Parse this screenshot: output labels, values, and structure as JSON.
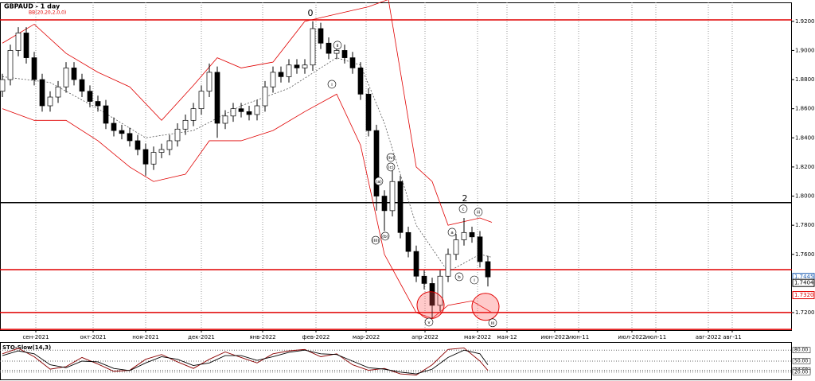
{
  "chart_data": [
    {
      "type": "candlestick",
      "title": "GBPAUD - 1 day",
      "subtitle": "BB(20,20,2,0,0)",
      "up_color": "#ffffff",
      "down_color": "#000000",
      "grid": true,
      "open": [
        1.872,
        1.88,
        1.9,
        1.912,
        1.895,
        1.88,
        1.862,
        1.868,
        1.875,
        1.888,
        1.88,
        1.872,
        1.865,
        1.862,
        1.85,
        1.845,
        1.843,
        1.838,
        1.832,
        1.822,
        1.83,
        1.832,
        1.838,
        1.846,
        1.852,
        1.86,
        1.872,
        1.885,
        1.85,
        1.855,
        1.86,
        1.858,
        1.856,
        1.862,
        1.875,
        1.885,
        1.882,
        1.89,
        1.888,
        1.89,
        1.915,
        1.905,
        1.898,
        1.9,
        1.895,
        1.888,
        1.87,
        1.845,
        1.8,
        1.79,
        1.81,
        1.775,
        1.762,
        1.745,
        1.74,
        1.725,
        1.745,
        1.76,
        1.77,
        1.775,
        1.772,
        1.755
      ],
      "high": [
        1.884,
        1.904,
        1.916,
        1.916,
        1.899,
        1.884,
        1.872,
        1.879,
        1.892,
        1.892,
        1.884,
        1.876,
        1.869,
        1.866,
        1.854,
        1.849,
        1.847,
        1.842,
        1.836,
        1.834,
        1.836,
        1.842,
        1.85,
        1.856,
        1.864,
        1.876,
        1.891,
        1.889,
        1.859,
        1.864,
        1.864,
        1.862,
        1.866,
        1.879,
        1.889,
        1.889,
        1.894,
        1.894,
        1.894,
        1.92,
        1.919,
        1.909,
        1.904,
        1.904,
        1.899,
        1.892,
        1.874,
        1.849,
        1.804,
        1.82,
        1.814,
        1.779,
        1.766,
        1.749,
        1.744,
        1.749,
        1.764,
        1.774,
        1.785,
        1.779,
        1.776,
        1.759
      ],
      "low": [
        1.868,
        1.876,
        1.896,
        1.891,
        1.876,
        1.858,
        1.858,
        1.864,
        1.871,
        1.876,
        1.868,
        1.861,
        1.858,
        1.846,
        1.841,
        1.839,
        1.834,
        1.828,
        1.814,
        1.818,
        1.826,
        1.828,
        1.834,
        1.842,
        1.848,
        1.856,
        1.868,
        1.84,
        1.846,
        1.851,
        1.854,
        1.852,
        1.852,
        1.858,
        1.871,
        1.878,
        1.878,
        1.884,
        1.884,
        1.886,
        1.901,
        1.894,
        1.894,
        1.891,
        1.884,
        1.866,
        1.841,
        1.79,
        1.776,
        1.786,
        1.771,
        1.758,
        1.741,
        1.736,
        1.716,
        1.721,
        1.741,
        1.756,
        1.766,
        1.768,
        1.751,
        1.738
      ],
      "close": [
        1.88,
        1.9,
        1.912,
        1.895,
        1.88,
        1.862,
        1.868,
        1.875,
        1.888,
        1.88,
        1.872,
        1.865,
        1.862,
        1.85,
        1.845,
        1.843,
        1.838,
        1.832,
        1.822,
        1.83,
        1.832,
        1.838,
        1.846,
        1.852,
        1.86,
        1.872,
        1.885,
        1.85,
        1.855,
        1.86,
        1.858,
        1.856,
        1.862,
        1.875,
        1.885,
        1.882,
        1.89,
        1.888,
        1.89,
        1.915,
        1.905,
        1.898,
        1.9,
        1.895,
        1.888,
        1.87,
        1.845,
        1.8,
        1.79,
        1.81,
        1.775,
        1.762,
        1.745,
        1.74,
        1.725,
        1.745,
        1.76,
        1.77,
        1.775,
        1.772,
        1.755,
        1.7445
      ],
      "bands": [
        {
          "color": "#e00000",
          "style": "solid",
          "x": [
            0,
            4,
            8,
            12,
            16,
            20,
            24,
            27,
            30,
            34,
            38,
            42,
            46,
            48.5,
            52,
            54,
            56,
            60,
            61.5
          ],
          "values": [
            1.905,
            1.918,
            1.898,
            1.885,
            1.875,
            1.852,
            1.876,
            1.895,
            1.888,
            1.892,
            1.92,
            1.925,
            1.93,
            1.935,
            1.82,
            1.81,
            1.78,
            1.785,
            1.782
          ]
        },
        {
          "color": "#555555",
          "style": "dashed",
          "x": [
            0,
            6,
            12,
            18,
            24,
            30,
            36,
            42,
            45,
            48,
            52,
            56,
            60,
            61.5
          ],
          "values": [
            1.882,
            1.878,
            1.86,
            1.84,
            1.845,
            1.862,
            1.874,
            1.895,
            1.89,
            1.85,
            1.78,
            1.748,
            1.76,
            1.758
          ]
        },
        {
          "color": "#e00000",
          "style": "solid",
          "x": [
            0,
            4,
            8,
            12,
            16,
            19,
            23,
            26,
            30,
            34,
            38,
            42,
            45,
            48,
            52,
            54,
            56,
            59,
            61.5
          ],
          "values": [
            1.86,
            1.852,
            1.852,
            1.838,
            1.82,
            1.81,
            1.815,
            1.838,
            1.838,
            1.845,
            1.858,
            1.87,
            1.835,
            1.76,
            1.72,
            1.716,
            1.725,
            1.728,
            1.72
          ]
        }
      ],
      "levels": [
        {
          "value": 1.921,
          "color": "#e00000"
        },
        {
          "value": 1.7955,
          "color": "#000000"
        },
        {
          "value": 1.7495,
          "color": "#e00000"
        },
        {
          "value": 1.7201,
          "color": "#e00000"
        },
        {
          "value": 1.7085,
          "color": "#e00000"
        }
      ],
      "price_tags": [
        {
          "value": 1.7445,
          "color": "#1e5fb4"
        },
        {
          "value": 1.7404,
          "color": "#000000"
        },
        {
          "value": 1.732,
          "label": "1.7320",
          "color": "#e00000"
        }
      ],
      "annotations": [
        {
          "text": "0",
          "x": 38.7,
          "y": 1.9255,
          "circled": false
        },
        {
          "text": "2",
          "x": 58.1,
          "y": 1.7983,
          "circled": false
        },
        {
          "text": "ii",
          "x": 42.1,
          "y": 1.9036,
          "circled": true
        },
        {
          "text": "i",
          "x": 41.4,
          "y": 1.8768,
          "circled": true
        },
        {
          "text": "(iv)",
          "x": 48.8,
          "y": 1.8265,
          "circled": true
        },
        {
          "text": "(c)",
          "x": 48.8,
          "y": 1.82,
          "circled": true
        },
        {
          "text": "(a)",
          "x": 47.3,
          "y": 1.8102,
          "circled": true
        },
        {
          "text": "(b)",
          "x": 48.1,
          "y": 1.7725,
          "circled": true
        },
        {
          "text": "(iii)",
          "x": 46.9,
          "y": 1.7697,
          "circled": true
        },
        {
          "text": "v",
          "x": 53.6,
          "y": 1.7135,
          "circled": true
        },
        {
          "text": "a",
          "x": 56.5,
          "y": 1.7752,
          "circled": true
        },
        {
          "text": "b",
          "x": 57.4,
          "y": 1.7446,
          "circled": true
        },
        {
          "text": "c",
          "x": 57.9,
          "y": 1.7912,
          "circled": true
        },
        {
          "text": "iii",
          "x": 59.8,
          "y": 1.789,
          "circled": true
        },
        {
          "text": "i",
          "x": 59.3,
          "y": 1.7424,
          "circled": true
        },
        {
          "text": "iii",
          "x": 61.6,
          "y": 1.713,
          "circled": true
        }
      ],
      "highlights": [
        {
          "x": 53.8,
          "y": 1.7251
        },
        {
          "x": 60.7,
          "y": 1.724
        }
      ],
      "xlim": [
        -0.3,
        99.2
      ],
      "ylim": [
        1.708,
        1.933
      ],
      "xticks": [
        {
          "value": 4.2,
          "label": "сен-2021"
        },
        {
          "value": 11.4,
          "label": "окт-2021"
        },
        {
          "value": 18,
          "label": "ноя-2021"
        },
        {
          "value": 25,
          "label": "дек-2021"
        },
        {
          "value": 32.7,
          "label": "янв-2022"
        },
        {
          "value": 39.4,
          "label": "фев-2022"
        },
        {
          "value": 45.7,
          "label": "мар-2022"
        },
        {
          "value": 53.1,
          "label": "апр-2022"
        },
        {
          "value": 59.7,
          "label": "мая-2022"
        },
        {
          "value": 63.4,
          "label": "мая-12"
        },
        {
          "value": 69.4,
          "label": "июн-2022"
        },
        {
          "value": 72.4,
          "label": "июн-11"
        },
        {
          "value": 79.1,
          "label": "июл-2022"
        },
        {
          "value": 82.1,
          "label": "июл-11"
        },
        {
          "value": 88.7,
          "label": "авг-2022"
        },
        {
          "value": 91.7,
          "label": "авг-11"
        }
      ],
      "yticks": [
        {
          "value": 1.92,
          "label": "1.9200"
        },
        {
          "value": 1.9,
          "label": "1.9000"
        },
        {
          "value": 1.88,
          "label": "1.8800"
        },
        {
          "value": 1.86,
          "label": "1.8600"
        },
        {
          "value": 1.84,
          "label": "1.8400"
        },
        {
          "value": 1.82,
          "label": "1.8200"
        },
        {
          "value": 1.8,
          "label": "1.8000"
        },
        {
          "value": 1.78,
          "label": "1.7800"
        },
        {
          "value": 1.76,
          "label": "1.7600"
        },
        {
          "value": 1.72,
          "label": "1.7200"
        }
      ]
    },
    {
      "type": "line",
      "title": "STO-Slow(14,3)",
      "series": [
        {
          "color": "#8b0000",
          "x": [
            0,
            2,
            4,
            6,
            8,
            10,
            12,
            14,
            16,
            18,
            20,
            22,
            24,
            26,
            28,
            30,
            32,
            34,
            36,
            38,
            40,
            42,
            44,
            46,
            48,
            50,
            52,
            54,
            56,
            58,
            60,
            61
          ],
          "values": [
            70,
            85,
            62,
            28,
            35,
            60,
            42,
            22,
            25,
            55,
            68,
            48,
            30,
            55,
            75,
            60,
            45,
            70,
            78,
            82,
            62,
            70,
            40,
            25,
            30,
            15,
            12,
            40,
            82,
            86,
            50,
            24.6
          ]
        },
        {
          "color": "#000000",
          "x": [
            0,
            2,
            4,
            6,
            8,
            10,
            12,
            14,
            16,
            18,
            20,
            22,
            24,
            26,
            28,
            30,
            32,
            34,
            36,
            38,
            40,
            42,
            44,
            46,
            48,
            50,
            52,
            54,
            56,
            58,
            60,
            61
          ],
          "values": [
            65,
            78,
            70,
            40,
            32,
            50,
            48,
            30,
            24,
            45,
            62,
            55,
            38,
            45,
            65,
            65,
            52,
            62,
            74,
            80,
            70,
            68,
            50,
            32,
            28,
            20,
            15,
            28,
            60,
            80,
            70,
            40
          ]
        }
      ],
      "xlim": [
        -0.3,
        99.2
      ],
      "ylim": [
        0,
        100
      ],
      "yticks": [
        {
          "value": 80,
          "label": "80.00"
        },
        {
          "value": 50,
          "label": "50.00"
        },
        {
          "value": 24.6,
          "label": "24.60"
        },
        {
          "value": 20,
          "label": "20.00"
        }
      ]
    }
  ]
}
